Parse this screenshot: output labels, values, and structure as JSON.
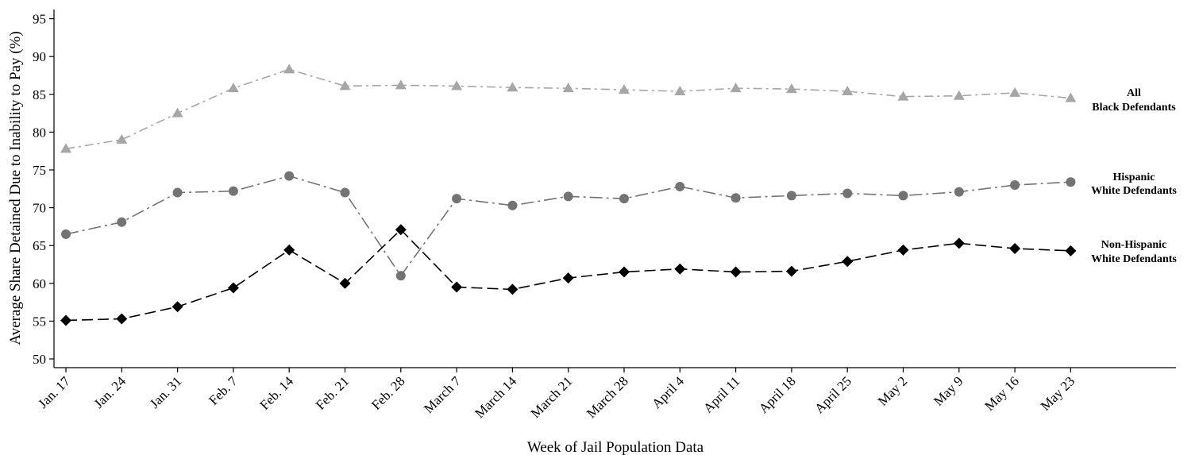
{
  "chart_data": {
    "type": "line",
    "title": "",
    "xlabel": "Week of Jail Population Data",
    "ylabel": "Average Share Detained Due to Inability to Pay (%)",
    "ylim": [
      49,
      96
    ],
    "yticks": [
      50,
      55,
      60,
      65,
      70,
      75,
      80,
      85,
      90,
      95
    ],
    "categories": [
      "Jan. 17",
      "Jan. 24",
      "Jan. 31",
      "Feb. 7",
      "Feb. 14",
      "Feb. 21",
      "Feb. 28",
      "March 7",
      "March 14",
      "March 21",
      "March 28",
      "April 4",
      "April 11",
      "April 18",
      "April 25",
      "May 2",
      "May 9",
      "May 16",
      "May 23"
    ],
    "grid": false,
    "legend": "labels at right end of each line",
    "series": [
      {
        "label_lines": [
          "All",
          "Black Defendants"
        ],
        "marker": "triangle",
        "line_style": "dash-dot",
        "color": "#a6a6a6",
        "values": [
          77.8,
          79.0,
          82.5,
          85.8,
          88.3,
          86.1,
          86.2,
          86.1,
          85.9,
          85.8,
          85.6,
          85.4,
          85.8,
          85.7,
          85.4,
          84.7,
          84.8,
          85.2,
          84.5
        ]
      },
      {
        "label_lines": [
          "Hispanic",
          "White Defendants"
        ],
        "marker": "circle",
        "line_style": "long-dash-dot",
        "color": "#737373",
        "values": [
          66.5,
          68.1,
          72.0,
          72.2,
          74.2,
          72.0,
          61.0,
          71.2,
          70.3,
          71.5,
          71.2,
          72.8,
          71.3,
          71.6,
          71.9,
          71.6,
          72.1,
          73.0,
          73.4
        ]
      },
      {
        "label_lines": [
          "Non-Hispanic",
          "White Defendants"
        ],
        "marker": "diamond",
        "line_style": "dash",
        "color": "#000000",
        "values": [
          55.1,
          55.3,
          56.9,
          59.4,
          64.4,
          60.0,
          67.1,
          59.5,
          59.2,
          60.7,
          61.5,
          61.9,
          61.5,
          61.6,
          62.9,
          64.4,
          65.3,
          64.6,
          64.3
        ]
      }
    ]
  }
}
